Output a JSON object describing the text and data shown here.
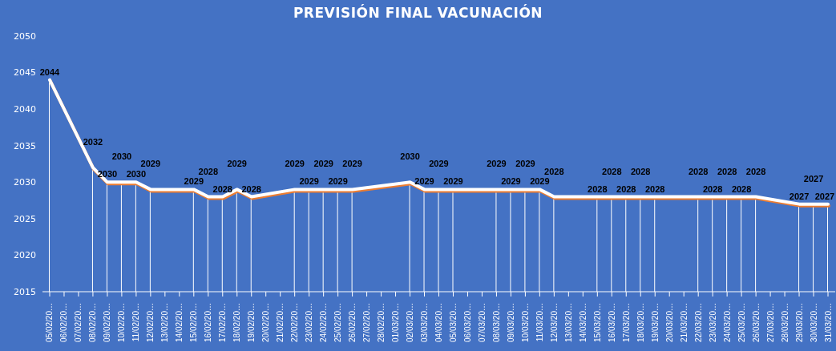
{
  "chart_data": {
    "type": "line",
    "title": "PREVISIÓN FINAL VACUNACIÓN",
    "categories": [
      "05/02/20…",
      "06/02/20…",
      "07/02/20…",
      "08/02/20…",
      "09/02/20…",
      "10/02/20…",
      "11/02/20…",
      "12/02/20…",
      "13/02/20…",
      "14/02/20…",
      "15/02/20…",
      "16/02/20…",
      "17/02/20…",
      "18/02/20…",
      "19/02/20…",
      "20/02/20…",
      "21/02/20…",
      "22/02/20…",
      "23/02/20…",
      "24/02/20…",
      "25/02/20…",
      "26/02/20…",
      "27/02/20…",
      "28/02/20…",
      "01/03/20…",
      "02/03/20…",
      "03/03/20…",
      "04/03/20…",
      "05/03/20…",
      "06/03/20…",
      "07/03/20…",
      "08/03/20…",
      "09/03/20…",
      "10/03/20…",
      "11/03/20…",
      "12/03/20…",
      "13/03/20…",
      "14/03/20…",
      "15/03/20…",
      "16/03/20…",
      "17/03/20…",
      "18/03/20…",
      "19/03/20…",
      "20/03/20…",
      "21/03/20…",
      "22/03/20…",
      "23/03/20…",
      "24/03/20…",
      "25/03/20…",
      "26/03/20…",
      "27/03/20…",
      "28/03/20…",
      "29/03/20…",
      "30/03/20…",
      "31/03/20…"
    ],
    "series": [
      {
        "type": "bar",
        "color": "#ffffff",
        "value_labels": [
          null,
          null,
          null,
          null,
          null,
          null,
          null,
          null,
          null,
          null,
          null,
          null,
          null,
          null,
          null,
          null,
          null,
          null,
          null,
          null,
          null,
          null,
          null,
          null,
          null,
          null,
          null,
          null,
          null,
          null,
          null,
          null,
          null,
          null,
          null,
          null,
          null,
          null,
          null,
          null,
          null,
          null,
          null,
          null,
          null,
          null,
          null,
          null,
          null,
          null,
          null,
          null,
          null,
          null,
          null
        ],
        "values": [
          2044,
          null,
          null,
          2032,
          2030,
          2030,
          2030,
          2029,
          null,
          null,
          2029,
          2028,
          2028,
          2029,
          2028,
          null,
          null,
          2029,
          2029,
          2029,
          2029,
          2029,
          null,
          null,
          null,
          2030,
          2029,
          2029,
          2029,
          null,
          null,
          2029,
          2029,
          2029,
          2029,
          2028,
          null,
          null,
          2028,
          2028,
          2028,
          2028,
          2028,
          null,
          null,
          2028,
          2028,
          2028,
          2028,
          2028,
          null,
          null,
          2027,
          2027,
          2027
        ]
      },
      {
        "color": "#ffffff",
        "values": [
          2044,
          null,
          null,
          2032,
          2030,
          2030,
          2030,
          2029,
          null,
          null,
          2029,
          2028,
          2028,
          2029,
          2028,
          null,
          null,
          2029,
          2029,
          2029,
          2029,
          2029,
          null,
          null,
          null,
          2030,
          2029,
          2029,
          2029,
          null,
          null,
          2029,
          2029,
          2029,
          2029,
          2028,
          null,
          null,
          2028,
          2028,
          2028,
          2028,
          2028,
          null,
          null,
          2028,
          2028,
          2028,
          2028,
          2028,
          null,
          null,
          2027,
          2027,
          2027
        ]
      }
    ],
    "ylim": [
      2015,
      2050
    ],
    "yticks": [
      2015,
      2020,
      2025,
      2030,
      2035,
      2040,
      2045,
      2050
    ],
    "data_labels": true,
    "grid": false,
    "legend": false,
    "line_style": "solid"
  }
}
